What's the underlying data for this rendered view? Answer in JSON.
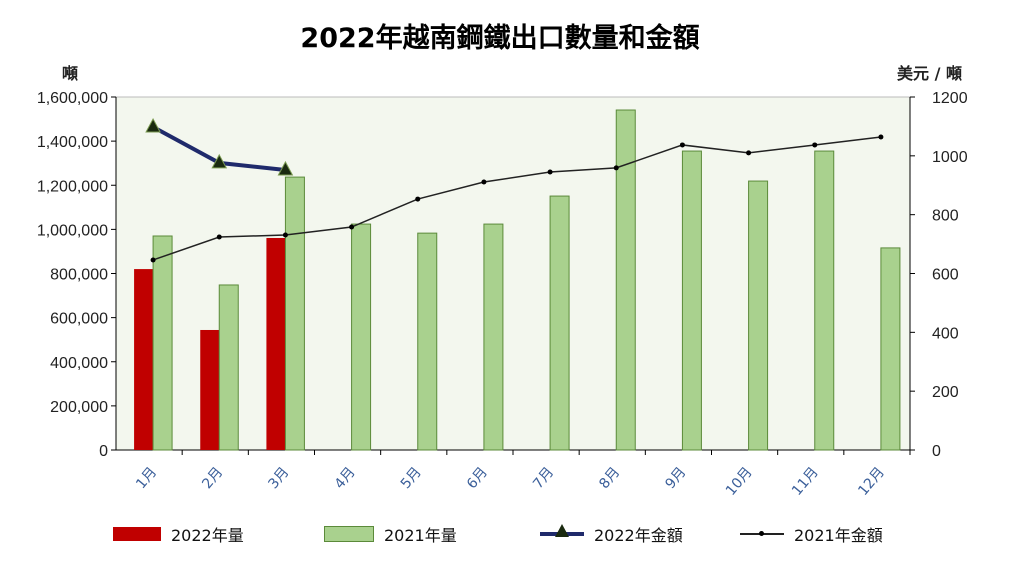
{
  "chart_data": {
    "type": "bar+line",
    "title": "2022年越南鋼鐵出口數量和金額",
    "ylabel_left": "噸",
    "ylabel_right": "美元 / 噸",
    "ylim_left": [
      0,
      1600000
    ],
    "yticks_left": [
      "0",
      "200,000",
      "400,000",
      "600,000",
      "800,000",
      "1,000,000",
      "1,200,000",
      "1,400,000",
      "1,600,000"
    ],
    "ylim_right": [
      0,
      1200
    ],
    "yticks_right": [
      "0",
      "200",
      "400",
      "600",
      "800",
      "1000",
      "1200"
    ],
    "categories": [
      "1月",
      "2月",
      "3月",
      "4月",
      "5月",
      "6月",
      "7月",
      "8月",
      "9月",
      "10月",
      "11月",
      "12月"
    ],
    "grid": false,
    "legend_position": "bottom",
    "series": [
      {
        "name": "2022年量",
        "type": "bar",
        "axis": "left",
        "color": "#c00000",
        "values": [
          820000,
          544000,
          961000,
          null,
          null,
          null,
          null,
          null,
          null,
          null,
          null,
          null
        ]
      },
      {
        "name": "2021年量",
        "type": "bar",
        "axis": "left",
        "color": "#a9d18e",
        "values": [
          970000,
          748000,
          1237000,
          1024000,
          983000,
          1024000,
          1151000,
          1541000,
          1355000,
          1219000,
          1355000,
          916000
        ]
      },
      {
        "name": "2022年金額",
        "type": "line",
        "axis": "right",
        "color": "#1f2a6b",
        "marker": "triangle",
        "values": [
          1098,
          976,
          952,
          null,
          null,
          null,
          null,
          null,
          null,
          null,
          null,
          null
        ]
      },
      {
        "name": "2021年金額",
        "type": "line",
        "axis": "right",
        "color": "#222222",
        "marker": "dot",
        "values": [
          646,
          724,
          731,
          758,
          853,
          911,
          945,
          959,
          1037,
          1010,
          1037,
          1064
        ]
      }
    ]
  }
}
